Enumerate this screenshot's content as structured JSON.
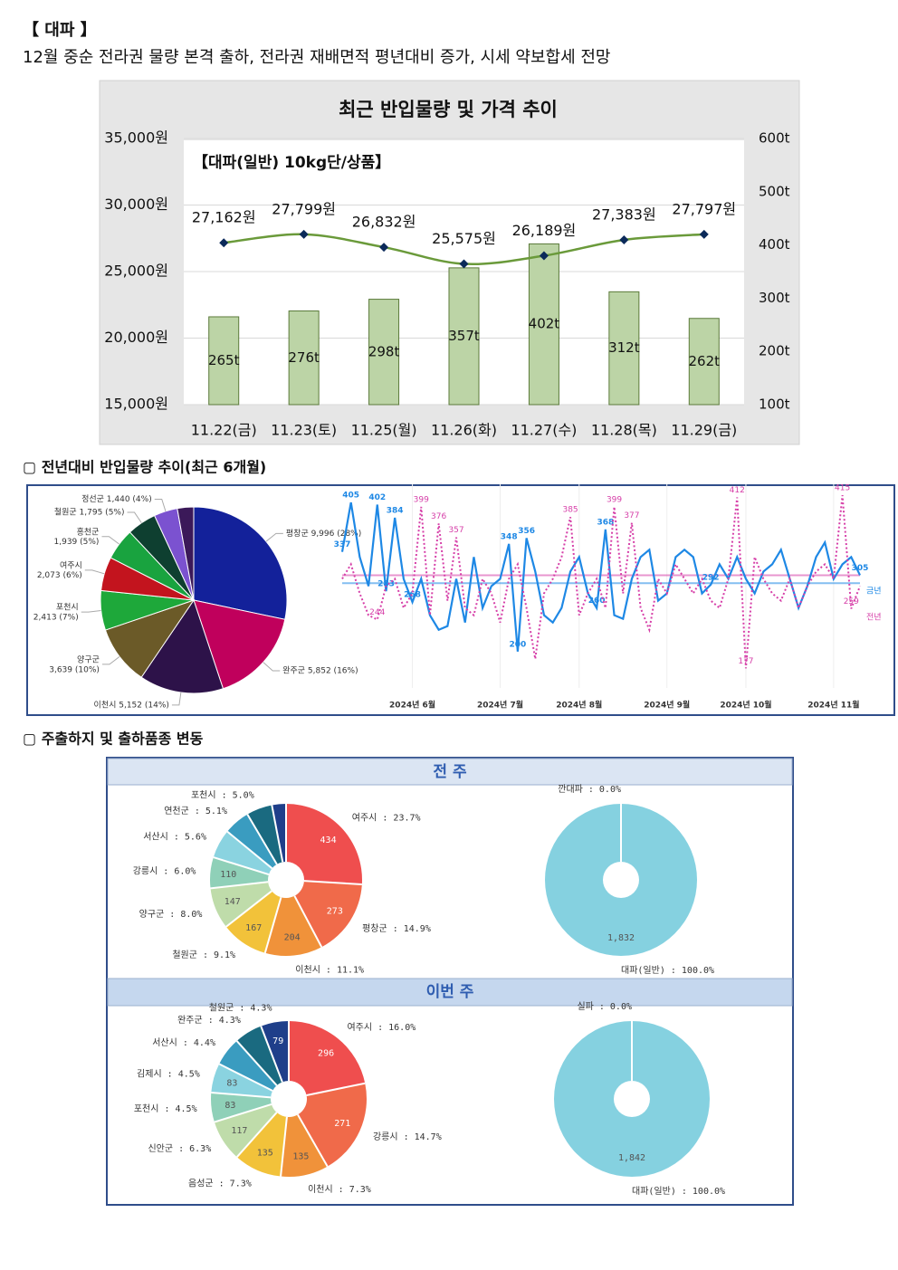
{
  "header": {
    "title": "【 대파 】",
    "subtitle": "12월 중순 전라권 물량 본격 출하, 전라권 재배면적 평년대비 증가, 시세 약보합세 전망"
  },
  "sections": [
    {
      "title": "▢ 전년대비 반입물량 추이(최근 6개월)"
    },
    {
      "title": "▢ 주출하지 및 출하품종 변동",
      "panels": [
        "전 주",
        "이번 주"
      ]
    }
  ],
  "chart_data": [
    {
      "type": "combo",
      "title": "최근 반입물량 및 가격 추이",
      "subtitle": "【대파(일반) 10kg단/상품】",
      "categories": [
        "11.22(금)",
        "11.23(토)",
        "11.25(월)",
        "11.26(화)",
        "11.27(수)",
        "11.28(목)",
        "11.29(금)"
      ],
      "series": [
        {
          "type": "bar",
          "axis": "y2",
          "color": "#bcd4a6",
          "values": [
            265,
            276,
            298,
            357,
            402,
            312,
            262
          ],
          "value_labels": [
            "265t",
            "276t",
            "298t",
            "357t",
            "402t",
            "312t",
            "262t"
          ]
        },
        {
          "type": "line",
          "axis": "y",
          "color": "#6a9a3a",
          "values": [
            27162,
            27799,
            26832,
            25575,
            26189,
            27383,
            27797
          ],
          "value_labels": [
            "27,162원",
            "27,799원",
            "26,832원",
            "25,575원",
            "26,189원",
            "27,383원",
            "27,797원"
          ]
        }
      ],
      "ylim": [
        15000,
        35000
      ],
      "yticks": [
        {
          "value": 15000,
          "label": "15,000원"
        },
        {
          "value": 20000,
          "label": "20,000원"
        },
        {
          "value": 25000,
          "label": "25,000원"
        },
        {
          "value": 30000,
          "label": "30,000원"
        },
        {
          "value": 35000,
          "label": "35,000원"
        }
      ],
      "y2lim": [
        100,
        600
      ],
      "y2ticks": [
        {
          "value": 100,
          "label": "100t"
        },
        {
          "value": 200,
          "label": "200t"
        },
        {
          "value": 300,
          "label": "300t"
        },
        {
          "value": 400,
          "label": "400t"
        },
        {
          "value": 500,
          "label": "500t"
        },
        {
          "value": 600,
          "label": "600t"
        }
      ],
      "grid": true
    },
    {
      "type": "pie",
      "labels": [
        "평창군 9,996 (28%)",
        "완주군 5,852 (16%)",
        "이천시 5,152 (14%)",
        "양구군\n3,639 (10%)",
        "포천시\n2,413 (7%)",
        "여주시\n2,073 (6%)",
        "홍천군\n1,939 (5%)",
        "철원군 1,795 (5%)",
        "정선군 1,440 (4%)",
        null
      ],
      "values": [
        9996,
        5852,
        5152,
        3639,
        2413,
        2073,
        1939,
        1795,
        1440,
        1000
      ],
      "colors": [
        "#13219a",
        "#c0005c",
        "#2d1249",
        "#6b5a28",
        "#1ea83a",
        "#c3141e",
        "#19a33f",
        "#0e3f30",
        "#7b52d0",
        "#3b1959"
      ]
    },
    {
      "type": "line",
      "categories": [
        null,
        null,
        null,
        null,
        null,
        null,
        null,
        null,
        "2024년 6월",
        null,
        null,
        null,
        null,
        null,
        null,
        null,
        null,
        null,
        "2024년 7월",
        null,
        null,
        null,
        null,
        null,
        null,
        null,
        null,
        "2024년 8월",
        null,
        null,
        null,
        null,
        null,
        null,
        null,
        null,
        null,
        "2024년 9월",
        null,
        null,
        null,
        null,
        null,
        null,
        null,
        null,
        "2024년 10월",
        null,
        null,
        null,
        null,
        null,
        null,
        null,
        null,
        null,
        "2024년 11월",
        null,
        null,
        null
      ],
      "ylim": [
        150,
        430
      ],
      "series": [
        {
          "name": "금년",
          "color": "#1e88e5",
          "style": "solid",
          "mean": 294,
          "values": [
            337,
            405,
            330,
            290,
            402,
            283,
            384,
            300,
            268,
            300,
            250,
            230,
            235,
            300,
            240,
            330,
            260,
            290,
            300,
            348,
            200,
            356,
            310,
            250,
            240,
            260,
            310,
            330,
            280,
            260,
            368,
            250,
            245,
            300,
            330,
            340,
            270,
            280,
            330,
            340,
            330,
            280,
            292,
            320,
            300,
            330,
            300,
            280,
            310,
            320,
            340,
            300,
            260,
            290,
            330,
            350,
            300,
            320,
            330,
            305
          ],
          "value_labels": [
            "337",
            "405",
            null,
            null,
            "402",
            "283",
            "384",
            null,
            "268",
            null,
            null,
            null,
            null,
            null,
            null,
            null,
            null,
            null,
            null,
            "348",
            "200",
            "356",
            null,
            null,
            null,
            null,
            null,
            null,
            null,
            "260",
            "368",
            null,
            null,
            null,
            null,
            null,
            null,
            null,
            null,
            null,
            null,
            null,
            "292",
            null,
            null,
            null,
            null,
            null,
            null,
            null,
            null,
            null,
            null,
            null,
            null,
            null,
            null,
            null,
            null,
            "305"
          ]
        },
        {
          "name": "전년",
          "color": "#d63fa8",
          "style": "dotted",
          "mean": 305,
          "values": [
            300,
            320,
            280,
            250,
            244,
            290,
            300,
            260,
            280,
            399,
            250,
            376,
            270,
            357,
            260,
            250,
            300,
            280,
            240,
            300,
            320,
            260,
            190,
            280,
            300,
            330,
            385,
            250,
            280,
            300,
            260,
            399,
            280,
            377,
            260,
            230,
            300,
            280,
            320,
            300,
            280,
            300,
            270,
            260,
            300,
            412,
            177,
            330,
            300,
            280,
            270,
            300,
            260,
            290,
            310,
            320,
            300,
            415,
            259,
            290
          ],
          "value_labels": [
            null,
            null,
            null,
            null,
            "244",
            null,
            null,
            null,
            null,
            "399",
            null,
            "376",
            null,
            "357",
            null,
            null,
            null,
            null,
            null,
            null,
            null,
            null,
            null,
            null,
            null,
            null,
            "385",
            null,
            null,
            null,
            null,
            "399",
            null,
            "377",
            null,
            null,
            null,
            null,
            null,
            null,
            null,
            null,
            null,
            null,
            null,
            "412",
            "177",
            null,
            null,
            null,
            null,
            null,
            null,
            null,
            null,
            null,
            null,
            "415",
            "259",
            null
          ]
        }
      ]
    },
    {
      "type": "donut",
      "labels": [
        "여주시 : 23.7%",
        "평창군 : 14.9%",
        "이천시 : 11.1%",
        "철원군 : 9.1%",
        "양구군 : 8.0%",
        "강릉시 : 6.0%",
        "서산시 : 5.6%",
        "연천군 : 5.1%",
        "포천시 : 5.0%",
        null
      ],
      "values": [
        434,
        273,
        204,
        167,
        147,
        110,
        103,
        93,
        92,
        50
      ],
      "value_labels": [
        "434",
        "273",
        "204",
        "167",
        "147",
        "110",
        null,
        null,
        null,
        null
      ],
      "colors": [
        "#ef4e4e",
        "#f06a4a",
        "#f0923a",
        "#f2c23a",
        "#bfdcaa",
        "#8fd0b8",
        "#8ad3e0",
        "#3a9cc0",
        "#1a6a80",
        "#1f3f8a"
      ]
    },
    {
      "type": "donut",
      "labels": [
        "깐대파 : 0.0%",
        "대파(일반) : 100.0%"
      ],
      "values": [
        0,
        1832
      ],
      "value_labels": [
        null,
        "1,832"
      ],
      "colors": [
        "#85d1e0",
        "#85d1e0"
      ]
    },
    {
      "type": "donut",
      "labels": [
        "여주시 : 16.0%",
        "강릉시 : 14.7%",
        "이천시 : 7.3%",
        "음성군 : 7.3%",
        "신안군 : 6.3%",
        "포천시 : 4.5%",
        "김제시 : 4.5%",
        "서산시 : 4.4%",
        "완주군 : 4.3%",
        "철원군 : 4.3%"
      ],
      "values": [
        296,
        271,
        135,
        135,
        117,
        83,
        83,
        81,
        79,
        79
      ],
      "value_labels": [
        "296",
        "271",
        "135",
        "135",
        "117",
        "83",
        "83",
        null,
        null,
        "79"
      ],
      "colors": [
        "#ef4e4e",
        "#f06a4a",
        "#f0923a",
        "#f2c23a",
        "#bfdcaa",
        "#8fd0b8",
        "#8ad3e0",
        "#3a9cc0",
        "#1a6a80",
        "#1f3f8a"
      ]
    },
    {
      "type": "donut",
      "labels": [
        "실파 : 0.0%",
        "대파(일반) : 100.0%"
      ],
      "values": [
        0,
        1842
      ],
      "value_labels": [
        null,
        "1,842"
      ],
      "colors": [
        "#85d1e0",
        "#85d1e0"
      ]
    }
  ]
}
